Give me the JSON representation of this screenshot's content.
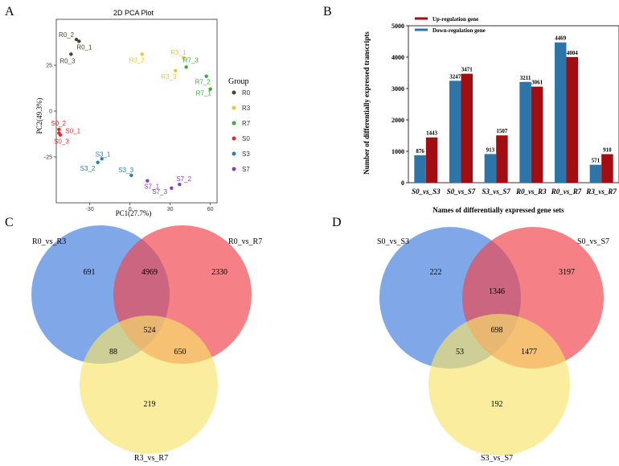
{
  "chart_data": [
    {
      "panel": "A",
      "type": "scatter",
      "title": "2D PCA Plot",
      "xlabel": "PC1(27.7%)",
      "ylabel": "PC2(49.3%)",
      "xlim": [
        -55,
        65
      ],
      "ylim": [
        -50,
        50
      ],
      "xticks": [
        -30,
        0,
        30,
        60
      ],
      "yticks": [
        -25,
        0,
        25
      ],
      "legend": {
        "title": "Group",
        "position": "right"
      },
      "groups": [
        {
          "name": "R0",
          "color": "#4b4328",
          "points": [
            {
              "label": "R0_2",
              "x": -40,
              "y": 39
            },
            {
              "label": "R0_1",
              "x": -38,
              "y": 38
            },
            {
              "label": "R0_3",
              "x": -44,
              "y": 31
            }
          ]
        },
        {
          "name": "R3",
          "color": "#f1c232",
          "points": [
            {
              "label": "R3_2",
              "x": 9,
              "y": 31
            },
            {
              "label": "R3_1",
              "x": 40,
              "y": 29
            },
            {
              "label": "R3_3",
              "x": 34,
              "y": 22
            }
          ]
        },
        {
          "name": "R7",
          "color": "#3aa935",
          "points": [
            {
              "label": "R7_3",
              "x": 42,
              "y": 24
            },
            {
              "label": "R7_2",
              "x": 57,
              "y": 19
            },
            {
              "label": "R7_1",
              "x": 60,
              "y": 12
            }
          ]
        },
        {
          "name": "S0",
          "color": "#e6282d",
          "points": [
            {
              "label": "S0_2",
              "x": -53,
              "y": -10
            },
            {
              "label": "S0_1",
              "x": -53,
              "y": -12
            },
            {
              "label": "S0_3",
              "x": -52,
              "y": -13
            }
          ]
        },
        {
          "name": "S3",
          "color": "#2b7bb9",
          "points": [
            {
              "label": "S3_1",
              "x": -21,
              "y": -26
            },
            {
              "label": "S3_2",
              "x": -24,
              "y": -28
            },
            {
              "label": "S3_3",
              "x": 1,
              "y": -35
            }
          ]
        },
        {
          "name": "S7",
          "color": "#8a3fb3",
          "points": [
            {
              "label": "S7_1",
              "x": 13,
              "y": -38
            },
            {
              "label": "S7_2",
              "x": 37,
              "y": -40
            },
            {
              "label": "S7_3",
              "x": 31,
              "y": -42
            }
          ]
        }
      ]
    },
    {
      "panel": "B",
      "type": "bar",
      "xlabel": "Names of differentially expressed gene sets",
      "ylabel": "Number of differentially expressed transcripts",
      "ylim": [
        0,
        5000
      ],
      "yticks": [
        0,
        1000,
        2000,
        3000,
        4000,
        5000
      ],
      "categories": [
        "S0_vs_S3",
        "S0_vs_S7",
        "S3_vs_S7",
        "R0_vs_R3",
        "R0_vs_R7",
        "R3_vs_R7"
      ],
      "series": [
        {
          "name": "Down-regulation gene",
          "color": "#2d74a8",
          "values": [
            876,
            3247,
            913,
            3211,
            4469,
            571
          ]
        },
        {
          "name": "Up-regulation gene",
          "color": "#a30d12",
          "values": [
            1443,
            3471,
            1507,
            3061,
            4004,
            910
          ]
        }
      ],
      "legend_order": [
        "Up-regulation gene",
        "Down-regulation gene"
      ],
      "legend_position": "top-left"
    },
    {
      "panel": "C",
      "type": "venn",
      "sets": [
        "R0_vs_R3",
        "R0_vs_R7",
        "R3_vs_R7"
      ],
      "colors": [
        "#4f86e0",
        "#f0454d",
        "#f7e36a"
      ],
      "regions": {
        "A_only": 691,
        "B_only": 2330,
        "C_only": 219,
        "AB": 4969,
        "AC": 88,
        "BC": 650,
        "ABC": 524
      }
    },
    {
      "panel": "D",
      "type": "venn",
      "sets": [
        "S0_vs_S3",
        "S0_vs_S7",
        "S3_vs_S7"
      ],
      "colors": [
        "#4f86e0",
        "#f0454d",
        "#f7e36a"
      ],
      "regions": {
        "A_only": 222,
        "B_only": 3197,
        "C_only": 192,
        "AB": 1346,
        "AC": 53,
        "BC": 1477,
        "ABC": 698
      }
    }
  ],
  "panel_letters": [
    "A",
    "B",
    "C",
    "D"
  ]
}
